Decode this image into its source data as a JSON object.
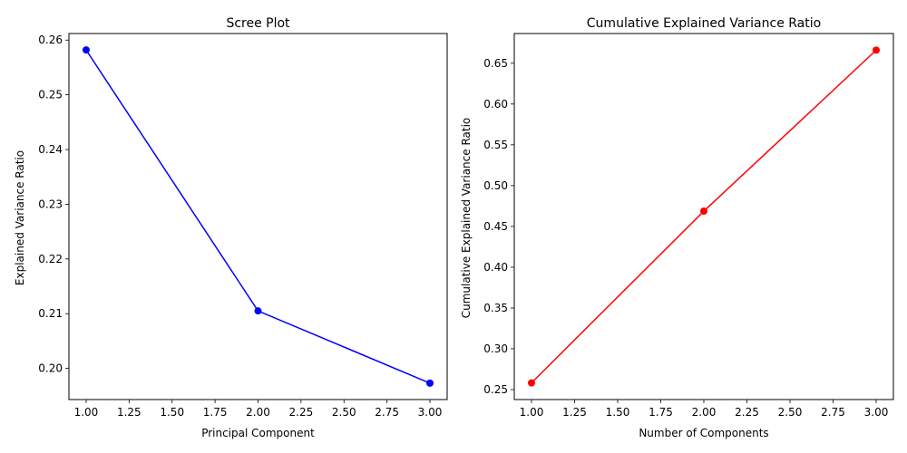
{
  "chart_data": [
    {
      "type": "line",
      "title": "Scree Plot",
      "xlabel": "Principal Component",
      "ylabel": "Explained Variance Ratio",
      "x": [
        1,
        2,
        3
      ],
      "series": [
        {
          "values": [
            0.2582,
            0.2105,
            0.1973
          ],
          "color": "#0000ff",
          "marker": "circle"
        }
      ],
      "xlim": [
        0.9,
        3.1
      ],
      "ylim": [
        0.1943,
        0.2612
      ],
      "xticks": [
        1.0,
        1.25,
        1.5,
        1.75,
        2.0,
        2.25,
        2.5,
        2.75,
        3.0
      ],
      "xtick_labels": [
        "1.00",
        "1.25",
        "1.50",
        "1.75",
        "2.00",
        "2.25",
        "2.50",
        "2.75",
        "3.00"
      ],
      "yticks": [
        0.2,
        0.21,
        0.22,
        0.23,
        0.24,
        0.25,
        0.26
      ],
      "ytick_labels": [
        "0.20",
        "0.21",
        "0.22",
        "0.23",
        "0.24",
        "0.25",
        "0.26"
      ],
      "grid": false,
      "legend": "none"
    },
    {
      "type": "line",
      "title": "Cumulative Explained Variance Ratio",
      "xlabel": "Number of Components",
      "ylabel": "Cumulative Explained Variance Ratio",
      "x": [
        1,
        2,
        3
      ],
      "series": [
        {
          "values": [
            0.2582,
            0.4687,
            0.666
          ],
          "color": "#ff0000",
          "marker": "circle"
        }
      ],
      "xlim": [
        0.9,
        3.1
      ],
      "ylim": [
        0.2378,
        0.6864
      ],
      "xticks": [
        1.0,
        1.25,
        1.5,
        1.75,
        2.0,
        2.25,
        2.5,
        2.75,
        3.0
      ],
      "xtick_labels": [
        "1.00",
        "1.25",
        "1.50",
        "1.75",
        "2.00",
        "2.25",
        "2.50",
        "2.75",
        "3.00"
      ],
      "yticks": [
        0.25,
        0.3,
        0.35,
        0.4,
        0.45,
        0.5,
        0.55,
        0.6,
        0.65
      ],
      "ytick_labels": [
        "0.25",
        "0.30",
        "0.35",
        "0.40",
        "0.45",
        "0.50",
        "0.55",
        "0.60",
        "0.65"
      ],
      "grid": false,
      "legend": "none"
    }
  ]
}
